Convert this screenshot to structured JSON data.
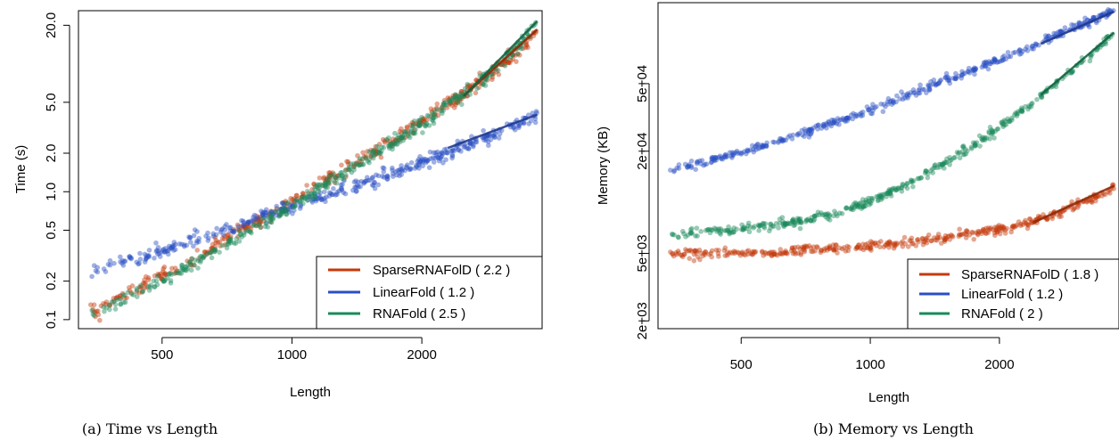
{
  "chart_data": [
    {
      "type": "scatter",
      "caption": "(a) Time vs Length",
      "xlabel": "Length",
      "ylabel": "Time (s)",
      "xscale": "log",
      "yscale": "log",
      "xlim": [
        320,
        3800
      ],
      "ylim": [
        0.085,
        26
      ],
      "xticks": [
        500,
        1000,
        2000
      ],
      "xtick_labels": [
        "500",
        "1000",
        "2000"
      ],
      "yticks": [
        0.1,
        0.2,
        0.5,
        1.0,
        2.0,
        5.0,
        20.0
      ],
      "ytick_labels": [
        "0.1",
        "0.2",
        "0.5",
        "1.0",
        "2.0",
        "5.0",
        "20.0"
      ],
      "grid": false,
      "legend": {
        "position": "bottom-right",
        "entries": [
          {
            "label": "SparseRNAFolD ( 2.2 )",
            "color": "#c43a0a"
          },
          {
            "label": "LinearFold ( 1.2 )",
            "color": "#2a4fc4"
          },
          {
            "label": "RNAFold ( 2.5 )",
            "color": "#1a8a5a"
          }
        ]
      },
      "series": [
        {
          "name": "SparseRNAFolD",
          "color": "#c43a0a",
          "fit_exponent": 2.2,
          "x": [
            340,
            400,
            500,
            600,
            700,
            800,
            1000,
            1200,
            1500,
            1800,
            2200,
            2700,
            3300,
            3700
          ],
          "y": [
            0.11,
            0.15,
            0.22,
            0.3,
            0.42,
            0.55,
            0.82,
            1.25,
            1.9,
            2.8,
            4.4,
            7.0,
            12.0,
            18.5
          ],
          "fit_x": [
            2500,
            3700
          ],
          "fit_y": [
            5.6,
            18.5
          ]
        },
        {
          "name": "LinearFold",
          "color": "#2a4fc4",
          "fit_exponent": 1.2,
          "x": [
            340,
            400,
            500,
            600,
            700,
            800,
            1000,
            1200,
            1500,
            1800,
            2200,
            2700,
            3300,
            3700
          ],
          "y": [
            0.24,
            0.28,
            0.34,
            0.42,
            0.5,
            0.58,
            0.75,
            0.95,
            1.2,
            1.5,
            1.9,
            2.5,
            3.3,
            4.0
          ],
          "fit_x": [
            2300,
            3700
          ],
          "fit_y": [
            2.2,
            4.0
          ]
        },
        {
          "name": "RNAFold",
          "color": "#1a8a5a",
          "fit_exponent": 2.5,
          "x": [
            340,
            400,
            500,
            600,
            700,
            800,
            1000,
            1200,
            1500,
            1800,
            2200,
            2700,
            3300,
            3700
          ],
          "y": [
            0.11,
            0.14,
            0.2,
            0.28,
            0.38,
            0.5,
            0.75,
            1.15,
            1.8,
            2.7,
            4.2,
            7.0,
            13.0,
            21.5
          ],
          "fit_x": [
            2500,
            3700
          ],
          "fit_y": [
            5.6,
            21.5
          ]
        }
      ]
    },
    {
      "type": "scatter",
      "caption": "(b) Memory vs Length",
      "xlabel": "Length",
      "ylabel": "Memory (KB)",
      "xscale": "log",
      "yscale": "log",
      "xlim": [
        320,
        3800
      ],
      "ylim": [
        1800,
        150000
      ],
      "xticks": [
        500,
        1000,
        2000
      ],
      "xtick_labels": [
        "500",
        "1000",
        "2000"
      ],
      "yticks": [
        2000,
        5000,
        20000,
        50000
      ],
      "ytick_labels": [
        "2e+03",
        "5e+03",
        "2e+04",
        "5e+04"
      ],
      "grid": false,
      "legend": {
        "position": "bottom-right",
        "entries": [
          {
            "label": "SparseRNAFolD ( 1.8 )",
            "color": "#c43a0a"
          },
          {
            "label": "LinearFold ( 1.2 )",
            "color": "#2a4fc4"
          },
          {
            "label": "RNAFold ( 2 )",
            "color": "#1a8a5a"
          }
        ]
      },
      "series": [
        {
          "name": "SparseRNAFolD",
          "color": "#c43a0a",
          "fit_exponent": 1.8,
          "x": [
            340,
            400,
            500,
            600,
            700,
            800,
            1000,
            1200,
            1500,
            1800,
            2200,
            2700,
            3300,
            3700
          ],
          "y": [
            5000,
            5000,
            5050,
            5100,
            5200,
            5300,
            5500,
            5800,
            6200,
            6700,
            7200,
            8500,
            10500,
            12000
          ],
          "fit_x": [
            2400,
            3700
          ],
          "fit_y": [
            7600,
            12500
          ]
        },
        {
          "name": "LinearFold",
          "color": "#2a4fc4",
          "fit_exponent": 1.2,
          "x": [
            340,
            400,
            500,
            600,
            700,
            800,
            1000,
            1200,
            1500,
            1800,
            2200,
            2700,
            3300,
            3700
          ],
          "y": [
            15500,
            17000,
            19500,
            22500,
            25500,
            28500,
            35000,
            42000,
            52000,
            62000,
            76000,
            95000,
            118000,
            133000
          ],
          "fit_x": [
            2500,
            3700
          ],
          "fit_y": [
            86000,
            133000
          ]
        },
        {
          "name": "RNAFold",
          "color": "#1a8a5a",
          "fit_exponent": 2,
          "x": [
            340,
            400,
            500,
            600,
            700,
            800,
            1000,
            1200,
            1500,
            1800,
            2200,
            2700,
            3300,
            3700
          ],
          "y": [
            6500,
            6700,
            7000,
            7400,
            7800,
            8400,
            10200,
            12500,
            17000,
            23000,
            33000,
            50000,
            76000,
            100000
          ],
          "fit_x": [
            2500,
            3700
          ],
          "fit_y": [
            43000,
            100000
          ]
        }
      ]
    }
  ]
}
